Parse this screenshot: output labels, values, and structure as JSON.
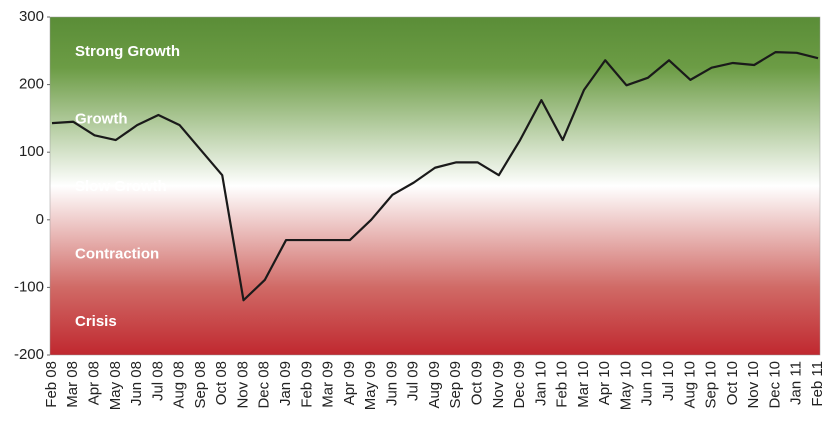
{
  "chart_data": {
    "type": "line",
    "categories": [
      "Feb 08",
      "Mar 08",
      "Apr 08",
      "May 08",
      "Jun 08",
      "Jul 08",
      "Aug 08",
      "Sep 08",
      "Oct 08",
      "Nov 08",
      "Dec 08",
      "Jan 09",
      "Feb 09",
      "Mar 09",
      "Apr 09",
      "May 09",
      "Jun 09",
      "Jul 09",
      "Aug 09",
      "Sep 09",
      "Oct 09",
      "Nov 09",
      "Dec 09",
      "Jan 10",
      "Feb 10",
      "Mar 10",
      "Apr 10",
      "May 10",
      "Jun 10",
      "Jul 10",
      "Aug 10",
      "Sep 10",
      "Oct 10",
      "Nov 10",
      "Dec 10",
      "Jan 11",
      "Feb 11"
    ],
    "series": [
      {
        "color": "#1a1a1a",
        "values": [
          143,
          145,
          125,
          118,
          140,
          155,
          140,
          103,
          66,
          -119,
          -89,
          -30,
          -30,
          -30,
          -30,
          0,
          37,
          55,
          77,
          85,
          85,
          66,
          118,
          177,
          118,
          192,
          236,
          199,
          210,
          236,
          207,
          225,
          232,
          229,
          248,
          247,
          239
        ]
      }
    ],
    "zones": [
      "Strong Growth",
      "Growth",
      "Slow Growth",
      "Contraction",
      "Crisis"
    ],
    "ylim": [
      -200,
      300
    ],
    "yticks": [
      300,
      200,
      100,
      0,
      -100,
      -200
    ]
  }
}
